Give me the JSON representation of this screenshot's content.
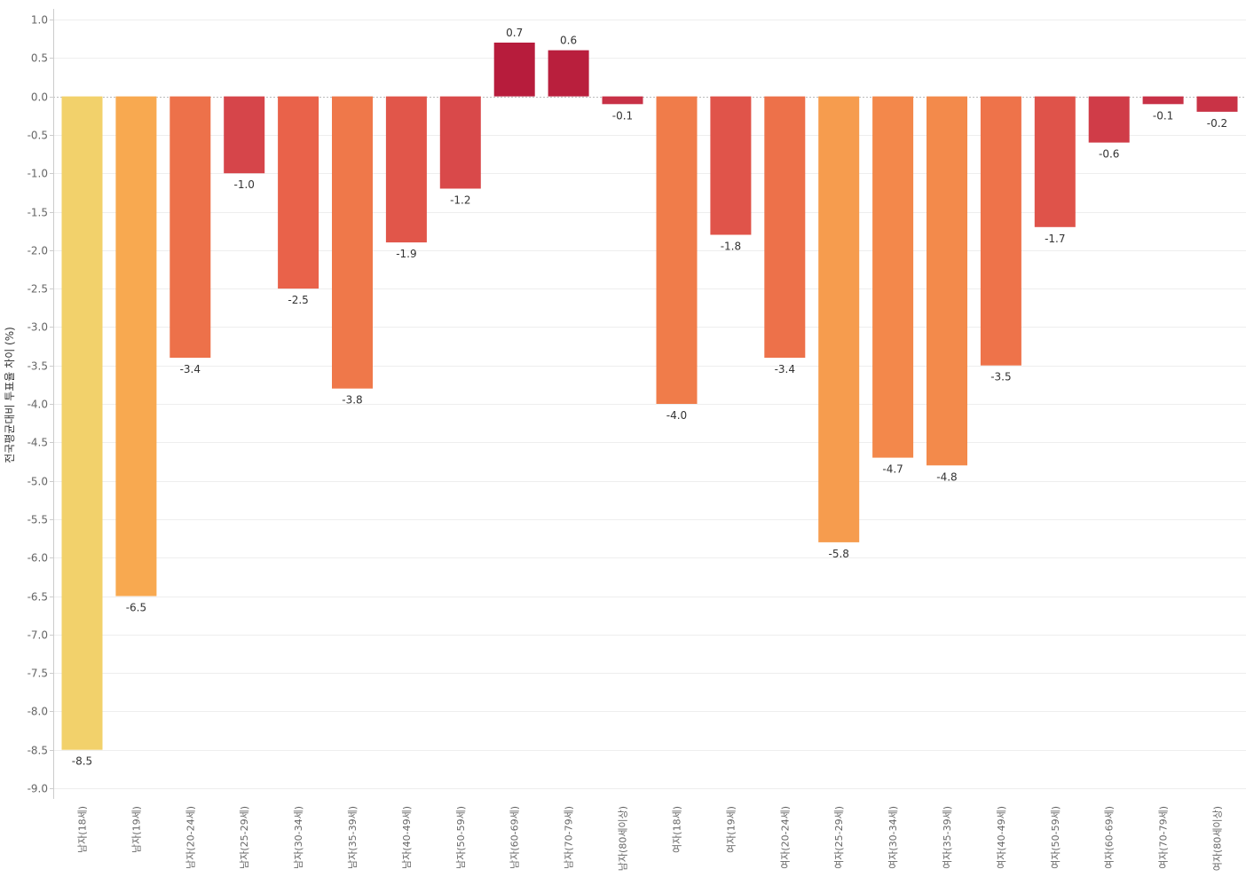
{
  "chart_data": {
    "type": "bar",
    "title": "",
    "xlabel": "",
    "ylabel": "전국평균대비 투표율 차이 (%)",
    "ylim": [
      -9.0,
      1.0
    ],
    "ytick_step": 0.5,
    "grid": true,
    "categories": [
      "남자(18세)",
      "남자(19세)",
      "남자(20-24세)",
      "남자(25-29세)",
      "남자(30-34세)",
      "남자(35-39세)",
      "남자(40-49세)",
      "남자(50-59세)",
      "남자(60-69세)",
      "남자(70-79세)",
      "남자(80세이상)",
      "여자(18세)",
      "여자(19세)",
      "여자(20-24세)",
      "여자(25-29세)",
      "여자(30-34세)",
      "여자(35-39세)",
      "여자(40-49세)",
      "여자(50-59세)",
      "여자(60-69세)",
      "여자(70-79세)",
      "여자(80세이상)"
    ],
    "values": [
      -8.5,
      -6.5,
      -3.4,
      -1.0,
      -2.5,
      -3.8,
      -1.9,
      -1.2,
      0.7,
      0.6,
      -0.1,
      -4.0,
      -1.8,
      -3.4,
      -5.8,
      -4.7,
      -4.8,
      -3.5,
      -1.7,
      -0.6,
      -0.1,
      -0.2
    ],
    "data_labels": [
      "-8.5",
      "-6.5",
      "-3.4",
      "-1.0",
      "-2.5",
      "-3.8",
      "-1.9",
      "-1.2",
      "0.7",
      "0.6",
      "-0.1",
      "-4.0",
      "-1.8",
      "-3.4",
      "-5.8",
      "-4.7",
      "-4.8",
      "-3.5",
      "-1.7",
      "-0.6",
      "-0.1",
      "-0.2"
    ],
    "yticks": [
      "1.0",
      "0.5",
      "0.0",
      "-0.5",
      "-1.0",
      "-1.5",
      "-2.0",
      "-2.5",
      "-3.0",
      "-3.5",
      "-4.0",
      "-4.5",
      "-5.0",
      "-5.5",
      "-6.0",
      "-6.5",
      "-7.0",
      "-7.5",
      "-8.0",
      "-8.5",
      "-9.0"
    ],
    "color_scale": {
      "description": "diverging: low values yellow -> orange -> red -> crimson for positive",
      "stops": [
        {
          "value": -8.5,
          "color": "#F2D16B"
        },
        {
          "value": -6.5,
          "color": "#F8A950"
        },
        {
          "value": -4.5,
          "color": "#F2844A"
        },
        {
          "value": -2.5,
          "color": "#E9624A"
        },
        {
          "value": -1.0,
          "color": "#D6454A"
        },
        {
          "value": 0.0,
          "color": "#C62F45"
        },
        {
          "value": 0.7,
          "color": "#B71C3C"
        }
      ]
    },
    "colors": {
      "grid": "#EEEEEE",
      "zero_line": "#BBBBBB",
      "axis": "#CCCCCC"
    }
  }
}
